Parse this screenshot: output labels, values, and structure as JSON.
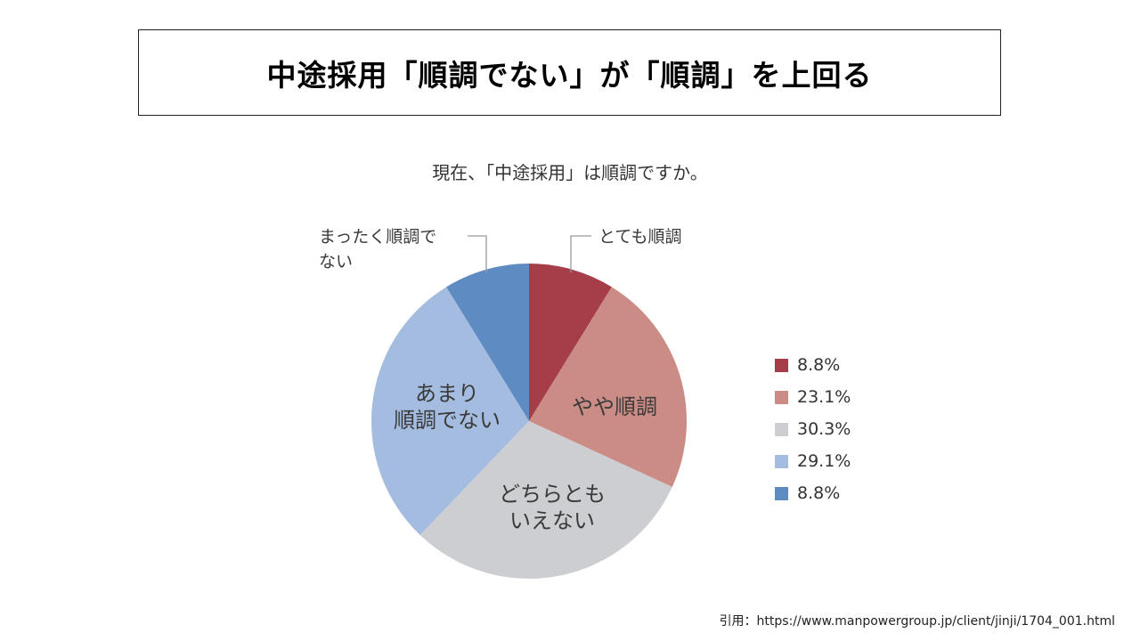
{
  "title": "中途採用「順調でない」が「順調」を上回る",
  "source": "引用：https://www.manpowergroup.jp/client/jinji/1704_001.html",
  "chart_data": {
    "type": "pie",
    "title": "現在、「中途採用」は順調ですか。",
    "slices": [
      {
        "label": "とても順調",
        "value": 8.8,
        "display": "8.8%",
        "color": "#a63e4a"
      },
      {
        "label": "やや順調",
        "value": 23.1,
        "display": "23.1%",
        "color": "#cc8c86"
      },
      {
        "label": "どちらとも\nいえない",
        "value": 30.3,
        "display": "30.3%",
        "color": "#cdced2"
      },
      {
        "label": "あまり\n順調でない",
        "value": 29.1,
        "display": "29.1%",
        "color": "#a4bcdf"
      },
      {
        "label": "まったく順調で\nない",
        "value": 8.8,
        "display": "8.8%",
        "color": "#5f8bc3"
      }
    ],
    "legend_position": "right"
  }
}
